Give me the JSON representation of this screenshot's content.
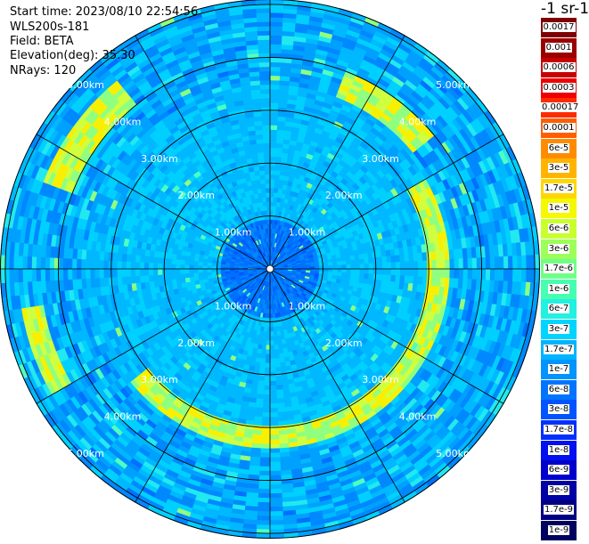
{
  "info": {
    "start_time": "Start time: 2023/08/10 22:54:56",
    "instrument": "WLS200s-181",
    "field": "Field: BETA",
    "elevation": "Elevation(deg): 35.30",
    "nrays": "NRays: 120"
  },
  "colorbar": {
    "unit": "-1 sr-1",
    "entries": [
      {
        "label": "0.0017",
        "color": "#7f0000"
      },
      {
        "label": "0.001",
        "color": "#9a0000"
      },
      {
        "label": "0.0006",
        "color": "#c80000"
      },
      {
        "label": "0.0003",
        "color": "#ee0000"
      },
      {
        "label": "0.00017",
        "color": "#ff2a00"
      },
      {
        "label": "0.0001",
        "color": "#ff5e00"
      },
      {
        "label": "6e-5",
        "color": "#ff8c00"
      },
      {
        "label": "3e-5",
        "color": "#ffb400"
      },
      {
        "label": "1.7e-5",
        "color": "#ffd700"
      },
      {
        "label": "1e-5",
        "color": "#f4f800"
      },
      {
        "label": "6e-6",
        "color": "#c8ff2e"
      },
      {
        "label": "3e-6",
        "color": "#9cff5a"
      },
      {
        "label": "1.7e-6",
        "color": "#70ff86"
      },
      {
        "label": "1e-6",
        "color": "#46ffb0"
      },
      {
        "label": "6e-7",
        "color": "#22f0e0"
      },
      {
        "label": "3e-7",
        "color": "#00d4ff"
      },
      {
        "label": "1.7e-7",
        "color": "#00b4ff"
      },
      {
        "label": "1e-7",
        "color": "#0094ff"
      },
      {
        "label": "6e-8",
        "color": "#0074ff"
      },
      {
        "label": "3e-8",
        "color": "#0054ff"
      },
      {
        "label": "1.7e-8",
        "color": "#0030ff"
      },
      {
        "label": "1e-8",
        "color": "#0010f0"
      },
      {
        "label": "6e-9",
        "color": "#0000cc"
      },
      {
        "label": "3e-9",
        "color": "#0000a4"
      },
      {
        "label": "1.7e-9",
        "color": "#000082"
      },
      {
        "label": "1e-9",
        "color": "#000060"
      }
    ]
  },
  "chart_data": {
    "type": "heatmap",
    "projection": "polar",
    "field": "BETA",
    "elevation_deg": 35.3,
    "n_rays": 120,
    "range_ring_labels": [
      "1.00km",
      "2.00km",
      "3.00km",
      "4.00km",
      "5.00km"
    ],
    "range_rings_km": [
      1,
      2,
      3,
      4,
      5
    ],
    "max_range_km": 5.1,
    "spoke_angles_deg": [
      0,
      30,
      60,
      90,
      120,
      150,
      180,
      210,
      240,
      270,
      300,
      330
    ],
    "ring_label_positions": [
      "top-left",
      "top-right",
      "bottom-left",
      "bottom-right"
    ],
    "background_level": "3e-8 to 3e-7",
    "features": [
      {
        "description_level": "1.7e-6 to 1e-5",
        "range_km": [
          3.0,
          3.4
        ],
        "azimuth_deg": [
          60,
          230
        ]
      },
      {
        "description_level": "1.7e-6 to 3e-5",
        "range_km": [
          4.3,
          4.8
        ],
        "azimuth_deg": [
          240,
          260
        ]
      },
      {
        "description_level": "1.7e-6 to 6e-6",
        "range_km": [
          4.0,
          4.6
        ],
        "azimuth_deg": [
          290,
          320
        ]
      },
      {
        "description_level": "1.7e-6 to 6e-6",
        "range_km": [
          3.5,
          4.0
        ],
        "azimuth_deg": [
          20,
          50
        ]
      }
    ]
  }
}
